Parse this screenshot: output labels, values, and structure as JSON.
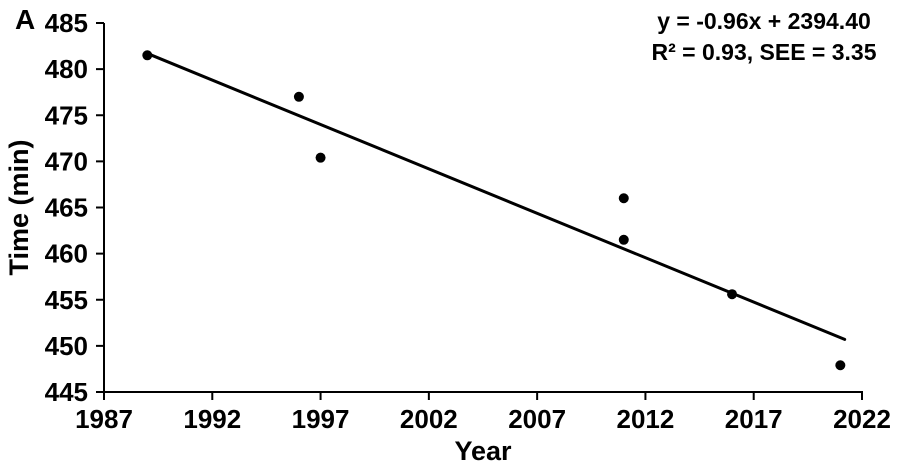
{
  "figure": {
    "panel_label": "A",
    "annotation": {
      "equation": "y = -0.96x + 2394.40",
      "stats": "R² = 0.93, SEE = 3.35"
    }
  },
  "chart_data": {
    "type": "scatter",
    "title": "",
    "xlabel": "Year",
    "ylabel": "Time (min)",
    "xlim": [
      1987,
      2022
    ],
    "ylim": [
      445,
      485
    ],
    "x_ticks": [
      1987,
      1992,
      1997,
      2002,
      2007,
      2012,
      2017,
      2022
    ],
    "y_ticks": [
      445,
      450,
      455,
      460,
      465,
      470,
      475,
      480,
      485
    ],
    "grid": false,
    "legend": false,
    "background_color": "#ffffff",
    "axis_color": "#000000",
    "text_color": "#000000",
    "marker": {
      "shape": "circle",
      "color": "#000000",
      "radius": 5
    },
    "points": [
      {
        "x": 1989,
        "y": 481.5
      },
      {
        "x": 1996,
        "y": 477.0
      },
      {
        "x": 1997,
        "y": 470.4
      },
      {
        "x": 2011,
        "y": 466.0
      },
      {
        "x": 2011,
        "y": 461.5
      },
      {
        "x": 2016,
        "y": 455.6
      },
      {
        "x": 2021,
        "y": 447.9
      }
    ],
    "regression": {
      "slope": -0.96,
      "intercept": 2394.4,
      "r_squared": 0.93,
      "see": 3.35,
      "line_color": "#000000",
      "line_width": 3,
      "drawn_segment": {
        "x1": 1989.0,
        "y1": 481.7,
        "x2": 2021.2,
        "y2": 450.7
      }
    }
  }
}
